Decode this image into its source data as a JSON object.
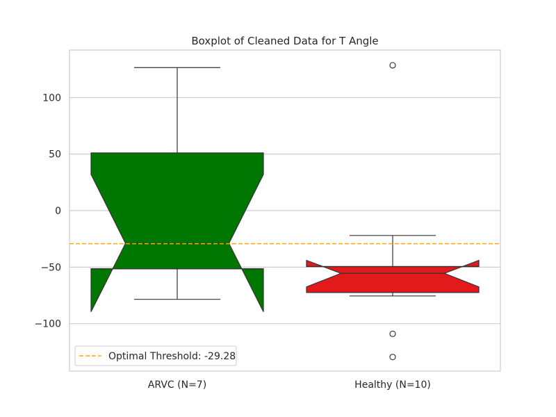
{
  "chart_data": {
    "type": "boxplot",
    "title": "Boxplot of Cleaned Data for T Angle",
    "xlabel": "",
    "ylabel": "",
    "ylim": [
      -142,
      142
    ],
    "yticks": [
      -100,
      -50,
      0,
      50,
      100
    ],
    "ytick_labels": [
      "−100",
      "−50",
      "0",
      "50",
      "100"
    ],
    "grid": true,
    "notched": true,
    "categories": [
      "ARVC (N=7)",
      "Healthy (N=10)"
    ],
    "boxes": [
      {
        "category": "ARVC (N=7)",
        "color": "#007700",
        "q1": -51.5,
        "median": -29.0,
        "q3": 51.0,
        "notch_low": -89.5,
        "notch_high": 32.0,
        "whisker_low": -78.5,
        "whisker_high": 126.5,
        "outliers": []
      },
      {
        "category": "Healthy (N=10)",
        "color": "#e31a1c",
        "q1": -72.5,
        "median": -55.5,
        "q3": -49.5,
        "notch_low": -67.5,
        "notch_high": -44.0,
        "whisker_low": -75.5,
        "whisker_high": -22.0,
        "outliers": [
          128.5,
          -109.0,
          -129.5
        ]
      }
    ],
    "threshold": {
      "value": -29.28,
      "label": "Optimal Threshold: -29.28",
      "color": "#ffa500"
    },
    "legend_position": "lower-left"
  }
}
